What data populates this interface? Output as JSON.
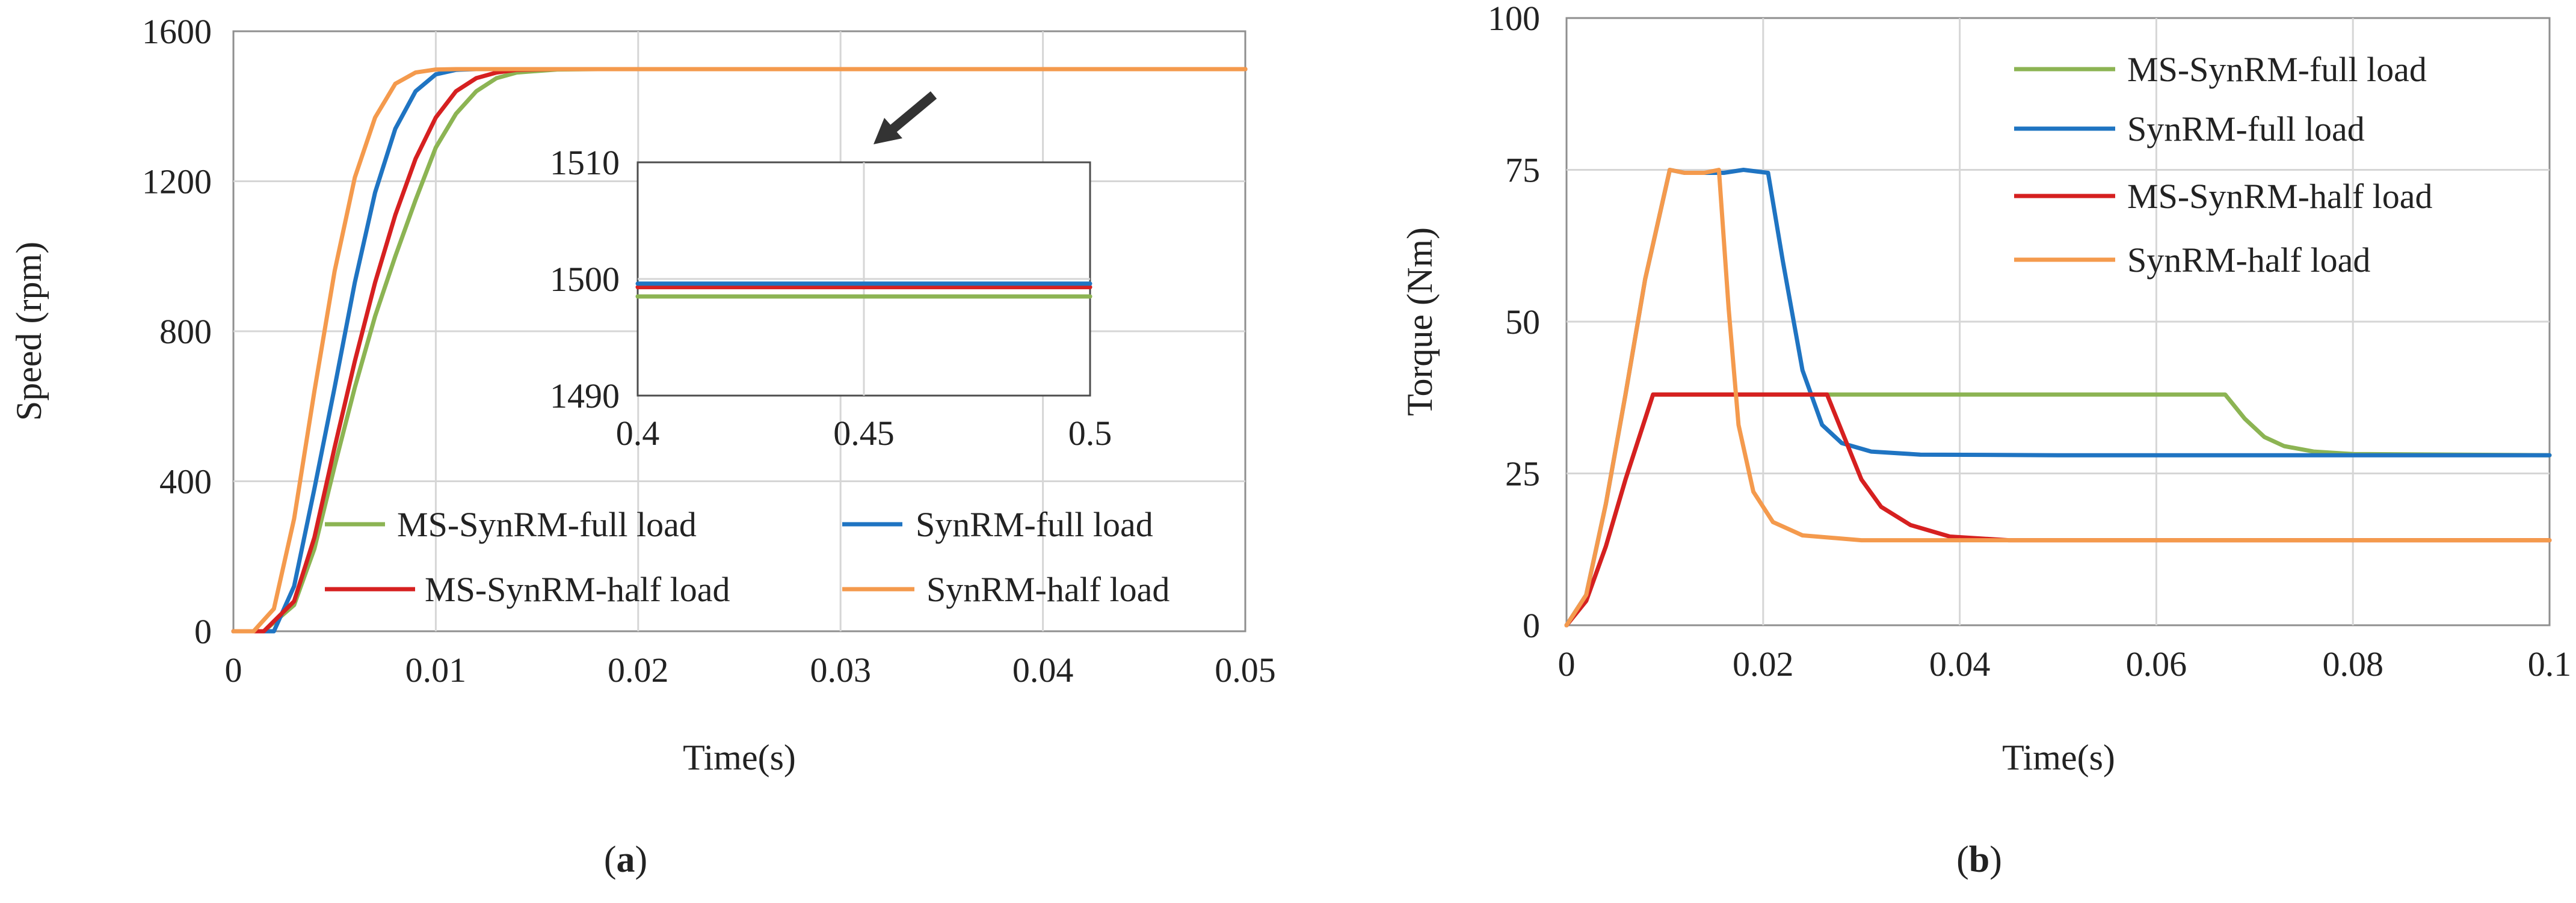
{
  "chart_data": [
    {
      "type": "line",
      "panel_label_prefix": "(",
      "panel_label_letter": "a",
      "panel_label_suffix": ")",
      "xlabel": "Time(s)",
      "ylabel": "Speed (rpm)",
      "xlim": [
        0,
        0.05
      ],
      "ylim": [
        0,
        1600
      ],
      "xticks": [
        0,
        0.01,
        0.02,
        0.03,
        0.04,
        0.05
      ],
      "xtick_labels": [
        "0",
        "0.01",
        "0.02",
        "0.03",
        "0.04",
        "0.05"
      ],
      "yticks": [
        0,
        400,
        800,
        1200,
        1600
      ],
      "ytick_labels": [
        "0",
        "400",
        "800",
        "1200",
        "1600"
      ],
      "grid": true,
      "legend": "bottom, two columns",
      "series": [
        {
          "name": "MS-SynRM-full load",
          "color": "#8cb453",
          "x": [
            0,
            0.0015,
            0.003,
            0.004,
            0.005,
            0.006,
            0.007,
            0.008,
            0.009,
            0.01,
            0.011,
            0.012,
            0.013,
            0.014,
            0.016,
            0.018,
            0.02,
            0.05
          ],
          "y": [
            0,
            0,
            70,
            220,
            440,
            650,
            840,
            1000,
            1150,
            1290,
            1380,
            1440,
            1475,
            1490,
            1498,
            1499,
            1499,
            1499
          ]
        },
        {
          "name": "SynRM-full load",
          "color": "#1f74c2",
          "x": [
            0,
            0.002,
            0.003,
            0.004,
            0.005,
            0.006,
            0.007,
            0.008,
            0.009,
            0.01,
            0.011,
            0.012,
            0.013,
            0.05
          ],
          "y": [
            0,
            0,
            120,
            380,
            650,
            930,
            1170,
            1340,
            1440,
            1485,
            1497,
            1499,
            1499,
            1499
          ]
        },
        {
          "name": "MS-SynRM-half load",
          "color": "#d62020",
          "x": [
            0,
            0.0015,
            0.003,
            0.004,
            0.005,
            0.006,
            0.007,
            0.008,
            0.009,
            0.01,
            0.011,
            0.012,
            0.013,
            0.014,
            0.016,
            0.05
          ],
          "y": [
            0,
            0,
            80,
            250,
            490,
            720,
            930,
            1110,
            1260,
            1370,
            1440,
            1475,
            1490,
            1497,
            1499,
            1499
          ]
        },
        {
          "name": "SynRM-half load",
          "color": "#f49a4d",
          "x": [
            0,
            0.001,
            0.002,
            0.003,
            0.004,
            0.005,
            0.006,
            0.007,
            0.008,
            0.009,
            0.01,
            0.011,
            0.012,
            0.05
          ],
          "y": [
            0,
            0,
            60,
            300,
            640,
            960,
            1210,
            1370,
            1460,
            1490,
            1498,
            1499,
            1499,
            1499
          ]
        }
      ],
      "inset": {
        "xlim": [
          0.4,
          0.5
        ],
        "ylim": [
          1490,
          1510
        ],
        "xticks": [
          0.4,
          0.45,
          0.5
        ],
        "xtick_labels": [
          "0.4",
          "0.45",
          "0.5"
        ],
        "yticks": [
          1490,
          1500,
          1510
        ],
        "ytick_labels": [
          "1490",
          "1500",
          "1510"
        ],
        "series": [
          {
            "name": "MS-SynRM-full load",
            "color": "#8cb453",
            "x": [
              0.4,
              0.5
            ],
            "y": [
              1498.5,
              1498.5
            ]
          },
          {
            "name": "MS-SynRM-half load",
            "color": "#d62020",
            "x": [
              0.4,
              0.5
            ],
            "y": [
              1499.3,
              1499.3
            ]
          },
          {
            "name": "SynRM-full load",
            "color": "#1f74c2",
            "x": [
              0.4,
              0.5
            ],
            "y": [
              1499.6,
              1499.6
            ]
          }
        ]
      }
    },
    {
      "type": "line",
      "panel_label_prefix": "(",
      "panel_label_letter": "b",
      "panel_label_suffix": ")",
      "xlabel": "Time(s)",
      "ylabel": "Torque (Nm)",
      "xlim": [
        0,
        0.1
      ],
      "ylim": [
        0,
        100
      ],
      "xticks": [
        0,
        0.02,
        0.04,
        0.06,
        0.08,
        0.1
      ],
      "xtick_labels": [
        "0",
        "0.02",
        "0.04",
        "0.06",
        "0.08",
        "0.1"
      ],
      "yticks": [
        0,
        25,
        50,
        75,
        100
      ],
      "ytick_labels": [
        "0",
        "25",
        "50",
        "75",
        "100"
      ],
      "grid": true,
      "legend": "top-right",
      "series": [
        {
          "name": "MS-SynRM-full load",
          "color": "#8cb453",
          "x": [
            0,
            0.002,
            0.004,
            0.006,
            0.0088,
            0.012,
            0.02,
            0.03,
            0.04,
            0.05,
            0.06,
            0.067,
            0.069,
            0.071,
            0.073,
            0.076,
            0.08,
            0.1
          ],
          "y": [
            0,
            4,
            13,
            24,
            38,
            38,
            38,
            38,
            38,
            38,
            38,
            38,
            34,
            31,
            29.5,
            28.6,
            28.2,
            28
          ]
        },
        {
          "name": "SynRM-full load",
          "color": "#1f74c2",
          "x": [
            0,
            0.002,
            0.004,
            0.006,
            0.008,
            0.0105,
            0.012,
            0.016,
            0.018,
            0.0205,
            0.022,
            0.024,
            0.026,
            0.028,
            0.031,
            0.036,
            0.05,
            0.1
          ],
          "y": [
            0,
            5,
            20,
            38,
            57,
            75,
            74.5,
            74.5,
            75,
            74.5,
            60,
            42,
            33,
            30,
            28.6,
            28.1,
            28,
            28
          ]
        },
        {
          "name": "MS-SynRM-half load",
          "color": "#d62020",
          "x": [
            0,
            0.002,
            0.004,
            0.006,
            0.0088,
            0.015,
            0.02,
            0.0265,
            0.028,
            0.03,
            0.032,
            0.035,
            0.039,
            0.045,
            0.05,
            0.1
          ],
          "y": [
            0,
            4,
            13,
            24,
            38,
            38,
            38,
            38,
            32,
            24,
            19.5,
            16.5,
            14.6,
            14,
            14,
            14
          ]
        },
        {
          "name": "SynRM-half load",
          "color": "#f49a4d",
          "x": [
            0,
            0.002,
            0.004,
            0.006,
            0.008,
            0.0105,
            0.012,
            0.014,
            0.0155,
            0.0165,
            0.0175,
            0.019,
            0.021,
            0.024,
            0.03,
            0.1
          ],
          "y": [
            0,
            5,
            20,
            38,
            57,
            75,
            74.5,
            74.5,
            75,
            52,
            33,
            22,
            17,
            14.8,
            14,
            14
          ]
        }
      ]
    }
  ]
}
